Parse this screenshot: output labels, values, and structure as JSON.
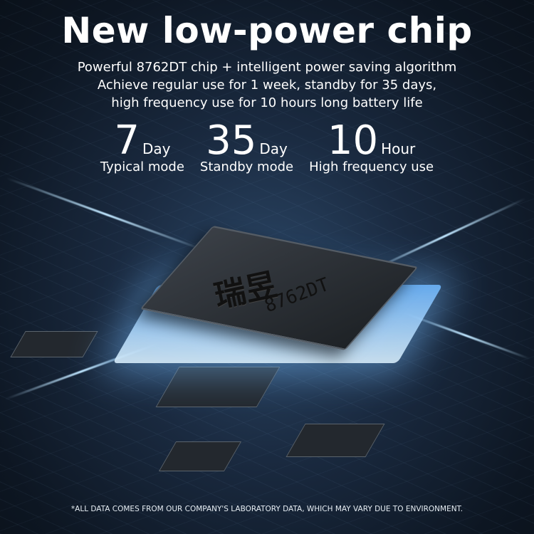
{
  "title": "New low-power chip",
  "subtitle": [
    "Powerful 8762DT chip + intelligent power saving algorithm",
    "Achieve regular use for 1 week, standby for 35 days,",
    "high frequency use for 10 hours long battery life"
  ],
  "stats": [
    {
      "value": "7",
      "unit": "Day",
      "mode": "Typical mode"
    },
    {
      "value": "35",
      "unit": "Day",
      "mode": "Standby mode"
    },
    {
      "value": "10",
      "unit": "Hour",
      "mode": "High frequency use"
    }
  ],
  "chip": {
    "logo": "瑞昱",
    "model": "8762DT"
  },
  "footnote": "*ALL DATA COMES FROM OUR COMPANY'S LABORATORY DATA, WHICH MAY VARY DUE TO ENVIRONMENT.",
  "colors": {
    "glow": "#bfe6ff",
    "background": "#1a2a40"
  }
}
